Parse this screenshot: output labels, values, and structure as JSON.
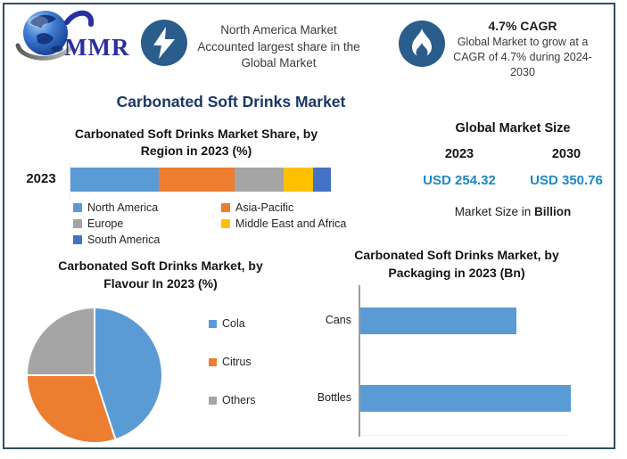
{
  "colors": {
    "border": "#2F4F5F",
    "accent_navy": "#1B3764",
    "icon_circle": "#2A5C8C",
    "value_blue": "#1E87C5",
    "series_blue": "#5B9BD5",
    "series_orange": "#ED7D31",
    "series_gray": "#A5A5A5",
    "series_yellow": "#FFC000",
    "series_darkblue": "#4472C4"
  },
  "header": {
    "logo_text": "MMR",
    "highlight": {
      "icon": "lightning-icon",
      "lines": [
        "North America Market",
        "Accounted largest share in the",
        "Global Market"
      ]
    },
    "cagr": {
      "icon": "flame-icon",
      "title": "4.7% CAGR",
      "lines": [
        "Global Market to grow at a",
        "CAGR of 4.7% during 2024-",
        "2030"
      ]
    }
  },
  "main_title": "Carbonated Soft Drinks Market",
  "market_size": {
    "title": "Global Market Size",
    "years": [
      "2023",
      "2030"
    ],
    "values": [
      "USD 254.32",
      "USD 350.76"
    ],
    "note_prefix": "Market Size in ",
    "note_bold": "Billion"
  },
  "chart_data": [
    {
      "id": "region-share",
      "type": "bar",
      "subtype": "stacked-horizontal",
      "title": "Carbonated Soft Drinks Market Share, by Region in 2023 (%)",
      "title_lines": [
        "Carbonated Soft Drinks Market Share, by",
        "Region in 2023 (%)"
      ],
      "category": "2023",
      "unit": "%",
      "xlim": [
        0,
        100
      ],
      "legend_position": "below",
      "grid": false,
      "segments": [
        {
          "label": "North America",
          "value": 34,
          "color": "#5B9BD5"
        },
        {
          "label": "Asia-Pacific",
          "value": 29,
          "color": "#ED7D31"
        },
        {
          "label": "Europe",
          "value": 19,
          "color": "#A5A5A5"
        },
        {
          "label": "Middle East and Africa",
          "value": 11,
          "color": "#FFC000"
        },
        {
          "label": "South America",
          "value": 7,
          "color": "#4472C4"
        }
      ]
    },
    {
      "id": "flavour-share",
      "type": "pie",
      "title": "Carbonated Soft Drinks Market, by Flavour In 2023 (%)",
      "title_lines": [
        "Carbonated Soft Drinks Market, by",
        "Flavour In 2023 (%)"
      ],
      "unit": "%",
      "legend_position": "right",
      "start_angle_deg": 0,
      "slices": [
        {
          "label": "Cola",
          "value": 45,
          "color": "#5B9BD5"
        },
        {
          "label": "Citrus",
          "value": 30,
          "color": "#ED7D31"
        },
        {
          "label": "Others",
          "value": 25,
          "color": "#A5A5A5"
        }
      ]
    },
    {
      "id": "packaging-size",
      "type": "bar",
      "subtype": "horizontal",
      "title": "Carbonated Soft Drinks Market, by Packaging in 2023 (Bn)",
      "title_lines": [
        "Carbonated Soft Drinks Market, by",
        "Packaging in 2023 (Bn)"
      ],
      "categories": [
        "Cans",
        "Bottles"
      ],
      "values_relative_pct": [
        74,
        100
      ],
      "bar_color": "#5B9BD5",
      "grid": false,
      "legend_position": "none"
    }
  ]
}
